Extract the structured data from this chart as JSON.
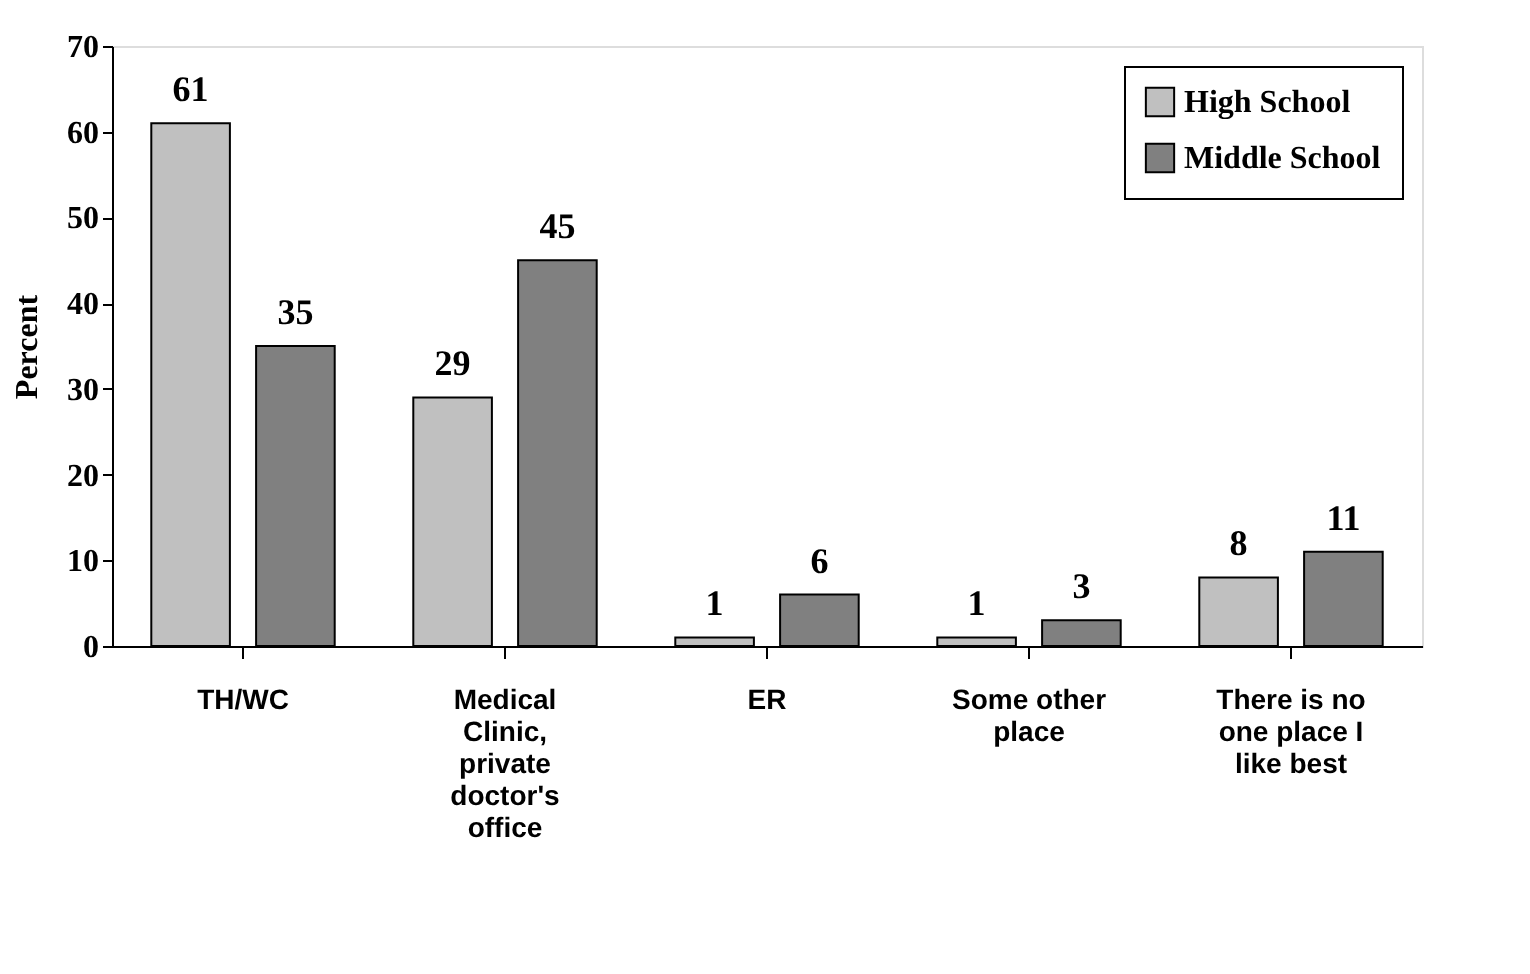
{
  "chart_data": {
    "type": "bar",
    "categories": [
      "TH/WC",
      "Medical Clinic, private doctor's office",
      "ER",
      "Some other place",
      "There is no one place I like best"
    ],
    "series": [
      {
        "name": "High School",
        "color": "#c0c0c0",
        "values": [
          61,
          29,
          1,
          1,
          8
        ]
      },
      {
        "name": "Middle School",
        "color": "#808080",
        "values": [
          35,
          45,
          6,
          3,
          11
        ]
      }
    ],
    "ylabel": "Percent",
    "ylim": [
      0,
      70
    ],
    "yticks": [
      0,
      10,
      20,
      30,
      40,
      50,
      60,
      70
    ],
    "data_labels": true,
    "grid": false,
    "legend": "top right"
  }
}
